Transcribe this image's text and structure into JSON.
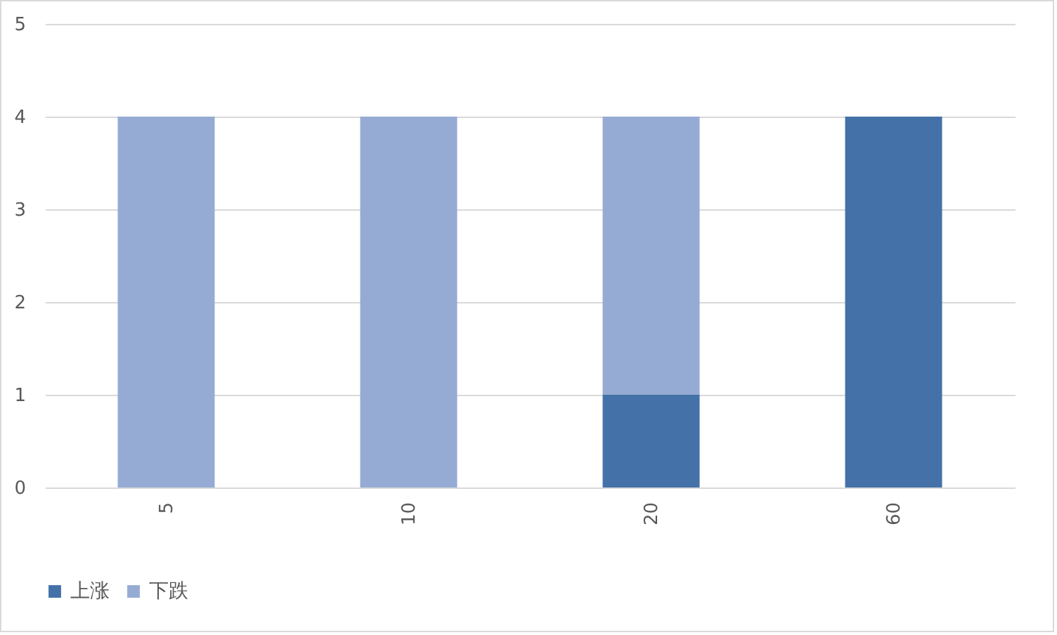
{
  "chart_data": {
    "type": "bar",
    "stacked": true,
    "categories": [
      "5",
      "10",
      "20",
      "60"
    ],
    "series": [
      {
        "name": "上涨",
        "color": "#4472a8",
        "values": [
          0,
          0,
          1,
          4
        ]
      },
      {
        "name": "下跌",
        "color": "#95abd3",
        "values": [
          4,
          4,
          3,
          0
        ]
      }
    ],
    "ylim": [
      0,
      5
    ],
    "yticks": [
      0,
      1,
      2,
      3,
      4,
      5
    ],
    "grid": "y",
    "legend": "bottom"
  }
}
